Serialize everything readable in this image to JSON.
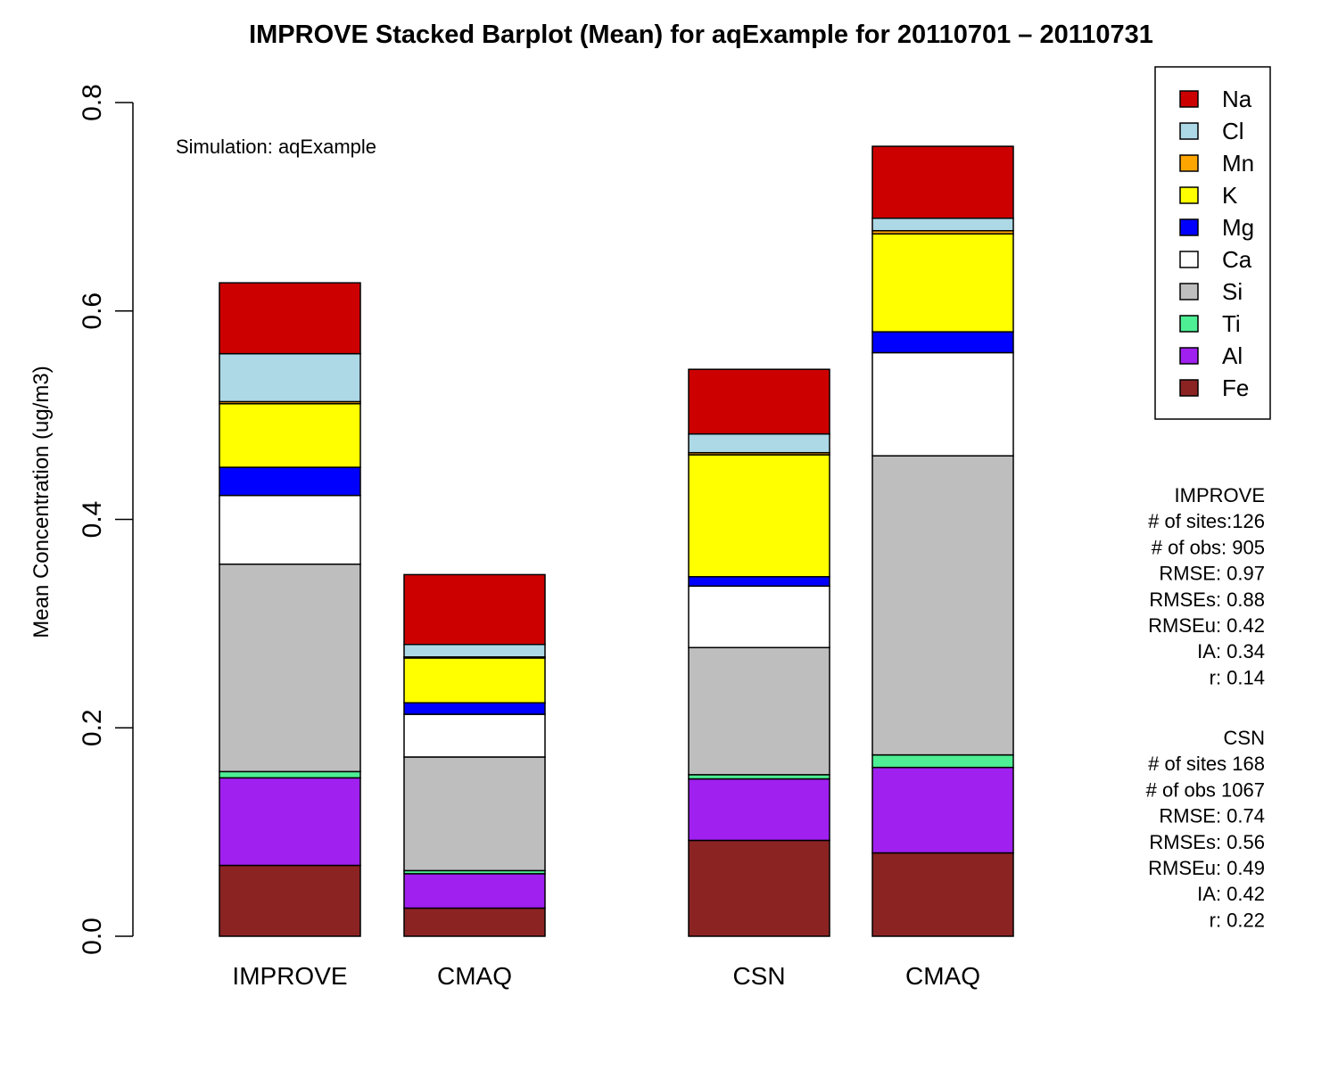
{
  "chart_data": {
    "type": "bar",
    "stacked": true,
    "title": "IMPROVE Stacked Barplot (Mean) for aqExample for 20110701 – 20110731",
    "ylabel": "Mean Concentration (ug/m3)",
    "xlabel": "",
    "ylim": [
      0,
      0.8
    ],
    "yticks": [
      "0.0",
      "0.2",
      "0.4",
      "0.6",
      "0.8"
    ],
    "grid": false,
    "legend_position": "top-right",
    "annotation": "Simulation: aqExample",
    "categories": [
      "IMPROVE",
      "CMAQ",
      "CSN",
      "CMAQ"
    ],
    "series": [
      {
        "name": "Fe",
        "color": "#8B2323",
        "values": [
          0.068,
          0.027,
          0.092,
          0.08
        ]
      },
      {
        "name": "Al",
        "color": "#A020F0",
        "values": [
          0.084,
          0.033,
          0.059,
          0.082
        ]
      },
      {
        "name": "Ti",
        "color": "#4EEE94",
        "values": [
          0.006,
          0.003,
          0.004,
          0.012
        ]
      },
      {
        "name": "Si",
        "color": "#BEBEBE",
        "values": [
          0.199,
          0.109,
          0.122,
          0.287
        ]
      },
      {
        "name": "Ca",
        "color": "#FFFFFF",
        "values": [
          0.066,
          0.041,
          0.059,
          0.099
        ]
      },
      {
        "name": "Mg",
        "color": "#0000FF",
        "values": [
          0.027,
          0.011,
          0.009,
          0.02
        ]
      },
      {
        "name": "K",
        "color": "#FFFF00",
        "values": [
          0.061,
          0.043,
          0.117,
          0.094
        ]
      },
      {
        "name": "Mn",
        "color": "#FFA500",
        "values": [
          0.002,
          0.001,
          0.002,
          0.003
        ]
      },
      {
        "name": "Cl",
        "color": "#ADD8E6",
        "values": [
          0.046,
          0.012,
          0.018,
          0.012
        ]
      },
      {
        "name": "Na",
        "color": "#CD0000",
        "values": [
          0.068,
          0.067,
          0.062,
          0.069
        ]
      }
    ],
    "legend_order": [
      "Na",
      "Cl",
      "Mn",
      "K",
      "Mg",
      "Ca",
      "Si",
      "Ti",
      "Al",
      "Fe"
    ],
    "stats_blocks": [
      {
        "lines": [
          "IMPROVE",
          "# of sites:126",
          "# of obs: 905",
          "RMSE: 0.97",
          "RMSEs: 0.88",
          "RMSEu: 0.42",
          "IA:   0.34",
          "r:   0.14"
        ]
      },
      {
        "lines": [
          "CSN",
          "# of sites 168",
          "# of obs 1067",
          "RMSE: 0.74",
          "RMSEs: 0.56",
          "RMSEu: 0.49",
          "IA:   0.42",
          "r:   0.22"
        ]
      }
    ]
  }
}
